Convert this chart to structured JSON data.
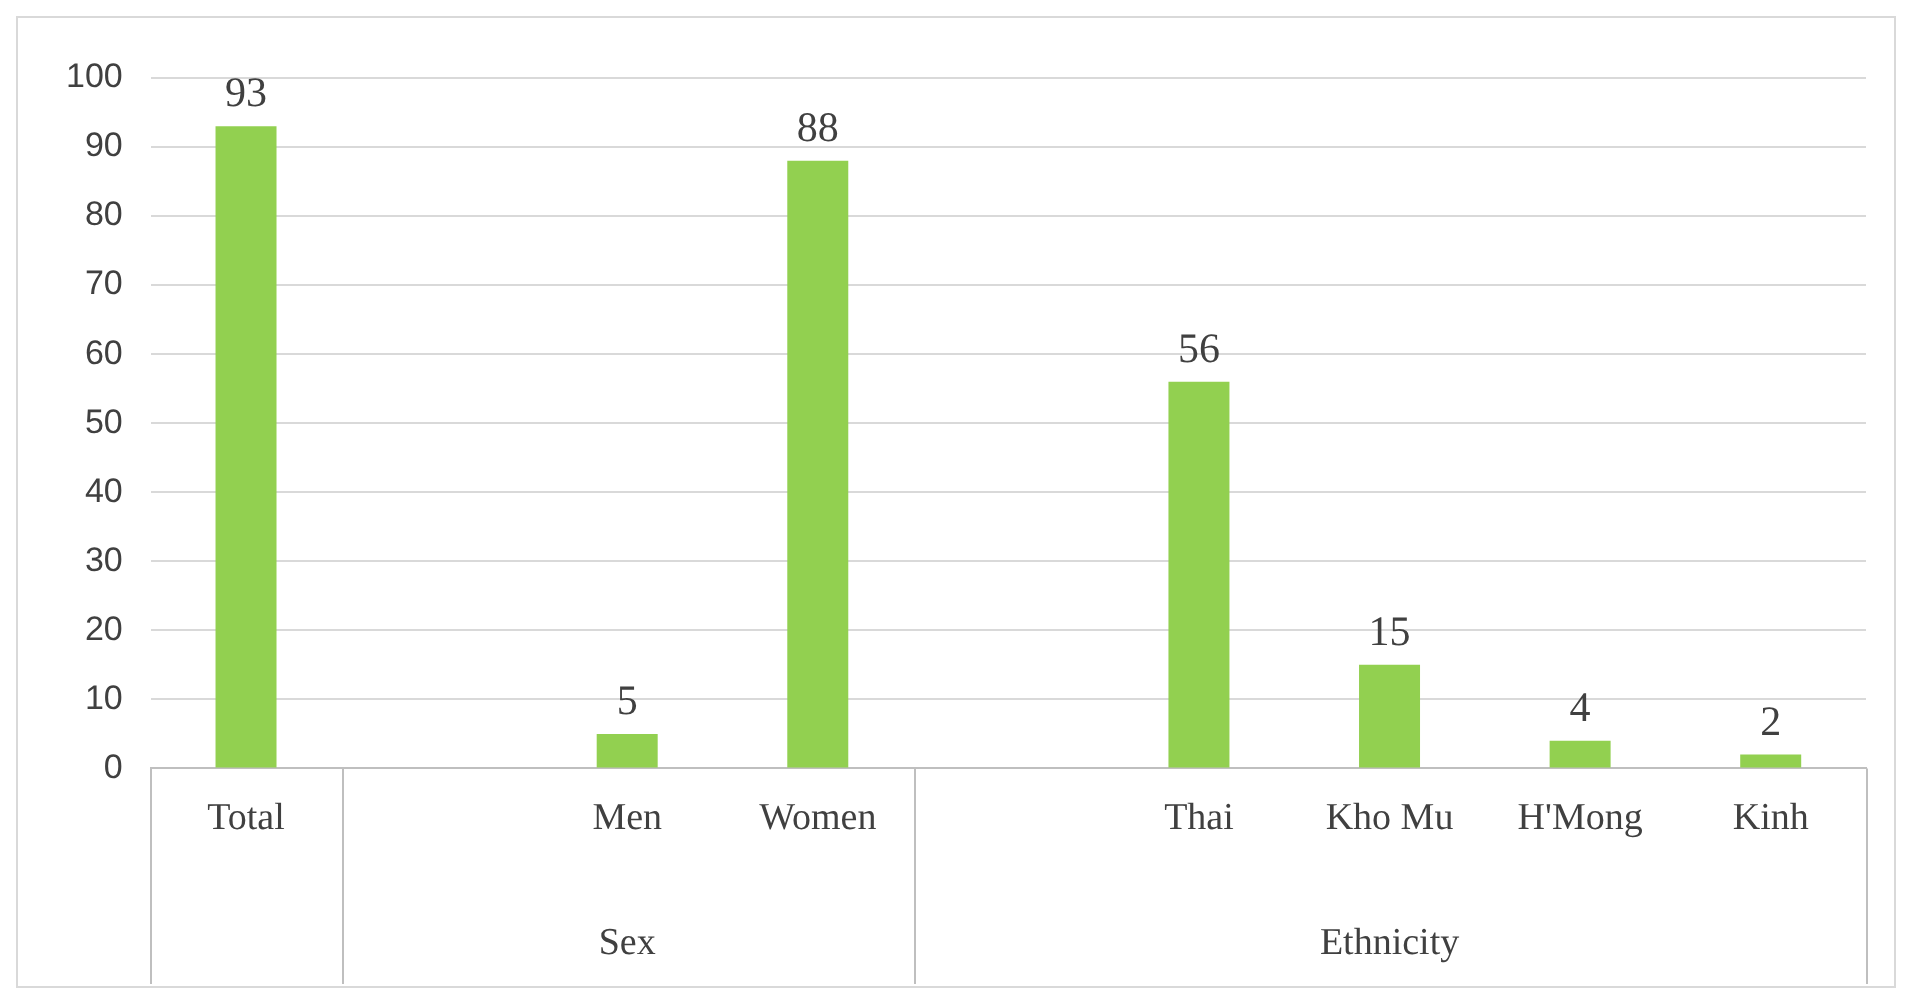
{
  "chart_data": {
    "type": "bar",
    "categories": [
      "Total",
      null,
      "Men",
      "Women",
      null,
      "Thai",
      "Kho Mu",
      "H'Mong",
      "Kinh"
    ],
    "values": [
      93,
      null,
      5,
      88,
      null,
      56,
      15,
      4,
      2
    ],
    "color": "#92d050",
    "ylim": [
      0,
      100
    ],
    "yticks": [
      0,
      10,
      20,
      30,
      40,
      50,
      60,
      70,
      80,
      90,
      100
    ],
    "grid": "y",
    "data_labels": true,
    "annotations": [
      "Sex",
      "Ethnicity"
    ]
  }
}
